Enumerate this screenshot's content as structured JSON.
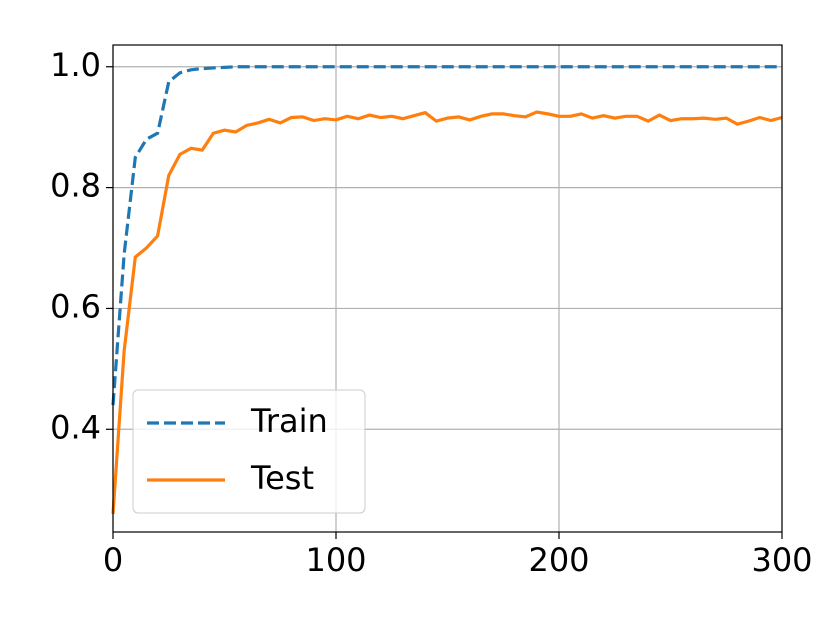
{
  "chart_data": {
    "type": "line",
    "x": [
      0,
      5,
      10,
      15,
      20,
      25,
      30,
      35,
      40,
      45,
      50,
      55,
      60,
      65,
      70,
      75,
      80,
      85,
      90,
      95,
      100,
      105,
      110,
      115,
      120,
      125,
      130,
      135,
      140,
      145,
      150,
      155,
      160,
      165,
      170,
      175,
      180,
      185,
      190,
      195,
      200,
      205,
      210,
      215,
      220,
      225,
      230,
      235,
      240,
      245,
      250,
      255,
      260,
      265,
      270,
      275,
      280,
      285,
      290,
      295,
      300
    ],
    "series": [
      {
        "name": "Train",
        "color": "#1f77b4",
        "linestyle": "dashed",
        "values": [
          0.44,
          0.69,
          0.85,
          0.88,
          0.89,
          0.975,
          0.99,
          0.995,
          0.997,
          0.998,
          0.999,
          1,
          1,
          1,
          1,
          1,
          1,
          1,
          1,
          1,
          1,
          1,
          1,
          1,
          1,
          1,
          1,
          1,
          1,
          1,
          1,
          1,
          1,
          1,
          1,
          1,
          1,
          1,
          1,
          1,
          1,
          1,
          1,
          1,
          1,
          1,
          1,
          1,
          1,
          1,
          1,
          1,
          1,
          1,
          1,
          1,
          1,
          1,
          1,
          1,
          1
        ]
      },
      {
        "name": "Test",
        "color": "#ff7f0e",
        "linestyle": "solid",
        "values": [
          0.26,
          0.53,
          0.685,
          0.7,
          0.72,
          0.82,
          0.855,
          0.865,
          0.862,
          0.89,
          0.895,
          0.892,
          0.903,
          0.907,
          0.913,
          0.907,
          0.916,
          0.917,
          0.911,
          0.914,
          0.912,
          0.918,
          0.914,
          0.92,
          0.916,
          0.918,
          0.914,
          0.919,
          0.924,
          0.91,
          0.915,
          0.917,
          0.912,
          0.918,
          0.922,
          0.922,
          0.919,
          0.917,
          0.925,
          0.922,
          0.918,
          0.918,
          0.922,
          0.915,
          0.919,
          0.915,
          0.918,
          0.918,
          0.91,
          0.92,
          0.911,
          0.914,
          0.914,
          0.915,
          0.913,
          0.915,
          0.905,
          0.91,
          0.916,
          0.911,
          0.916
        ]
      }
    ],
    "xlim": [
      0,
      300
    ],
    "xticks": [
      0,
      100,
      200,
      300
    ],
    "ylim": [
      0.23,
      1.036
    ],
    "yticks": [
      0.4,
      0.6,
      0.8,
      {
        "value": 1,
        "label": "1.0"
      }
    ],
    "grid": true,
    "legend": "lower left"
  }
}
